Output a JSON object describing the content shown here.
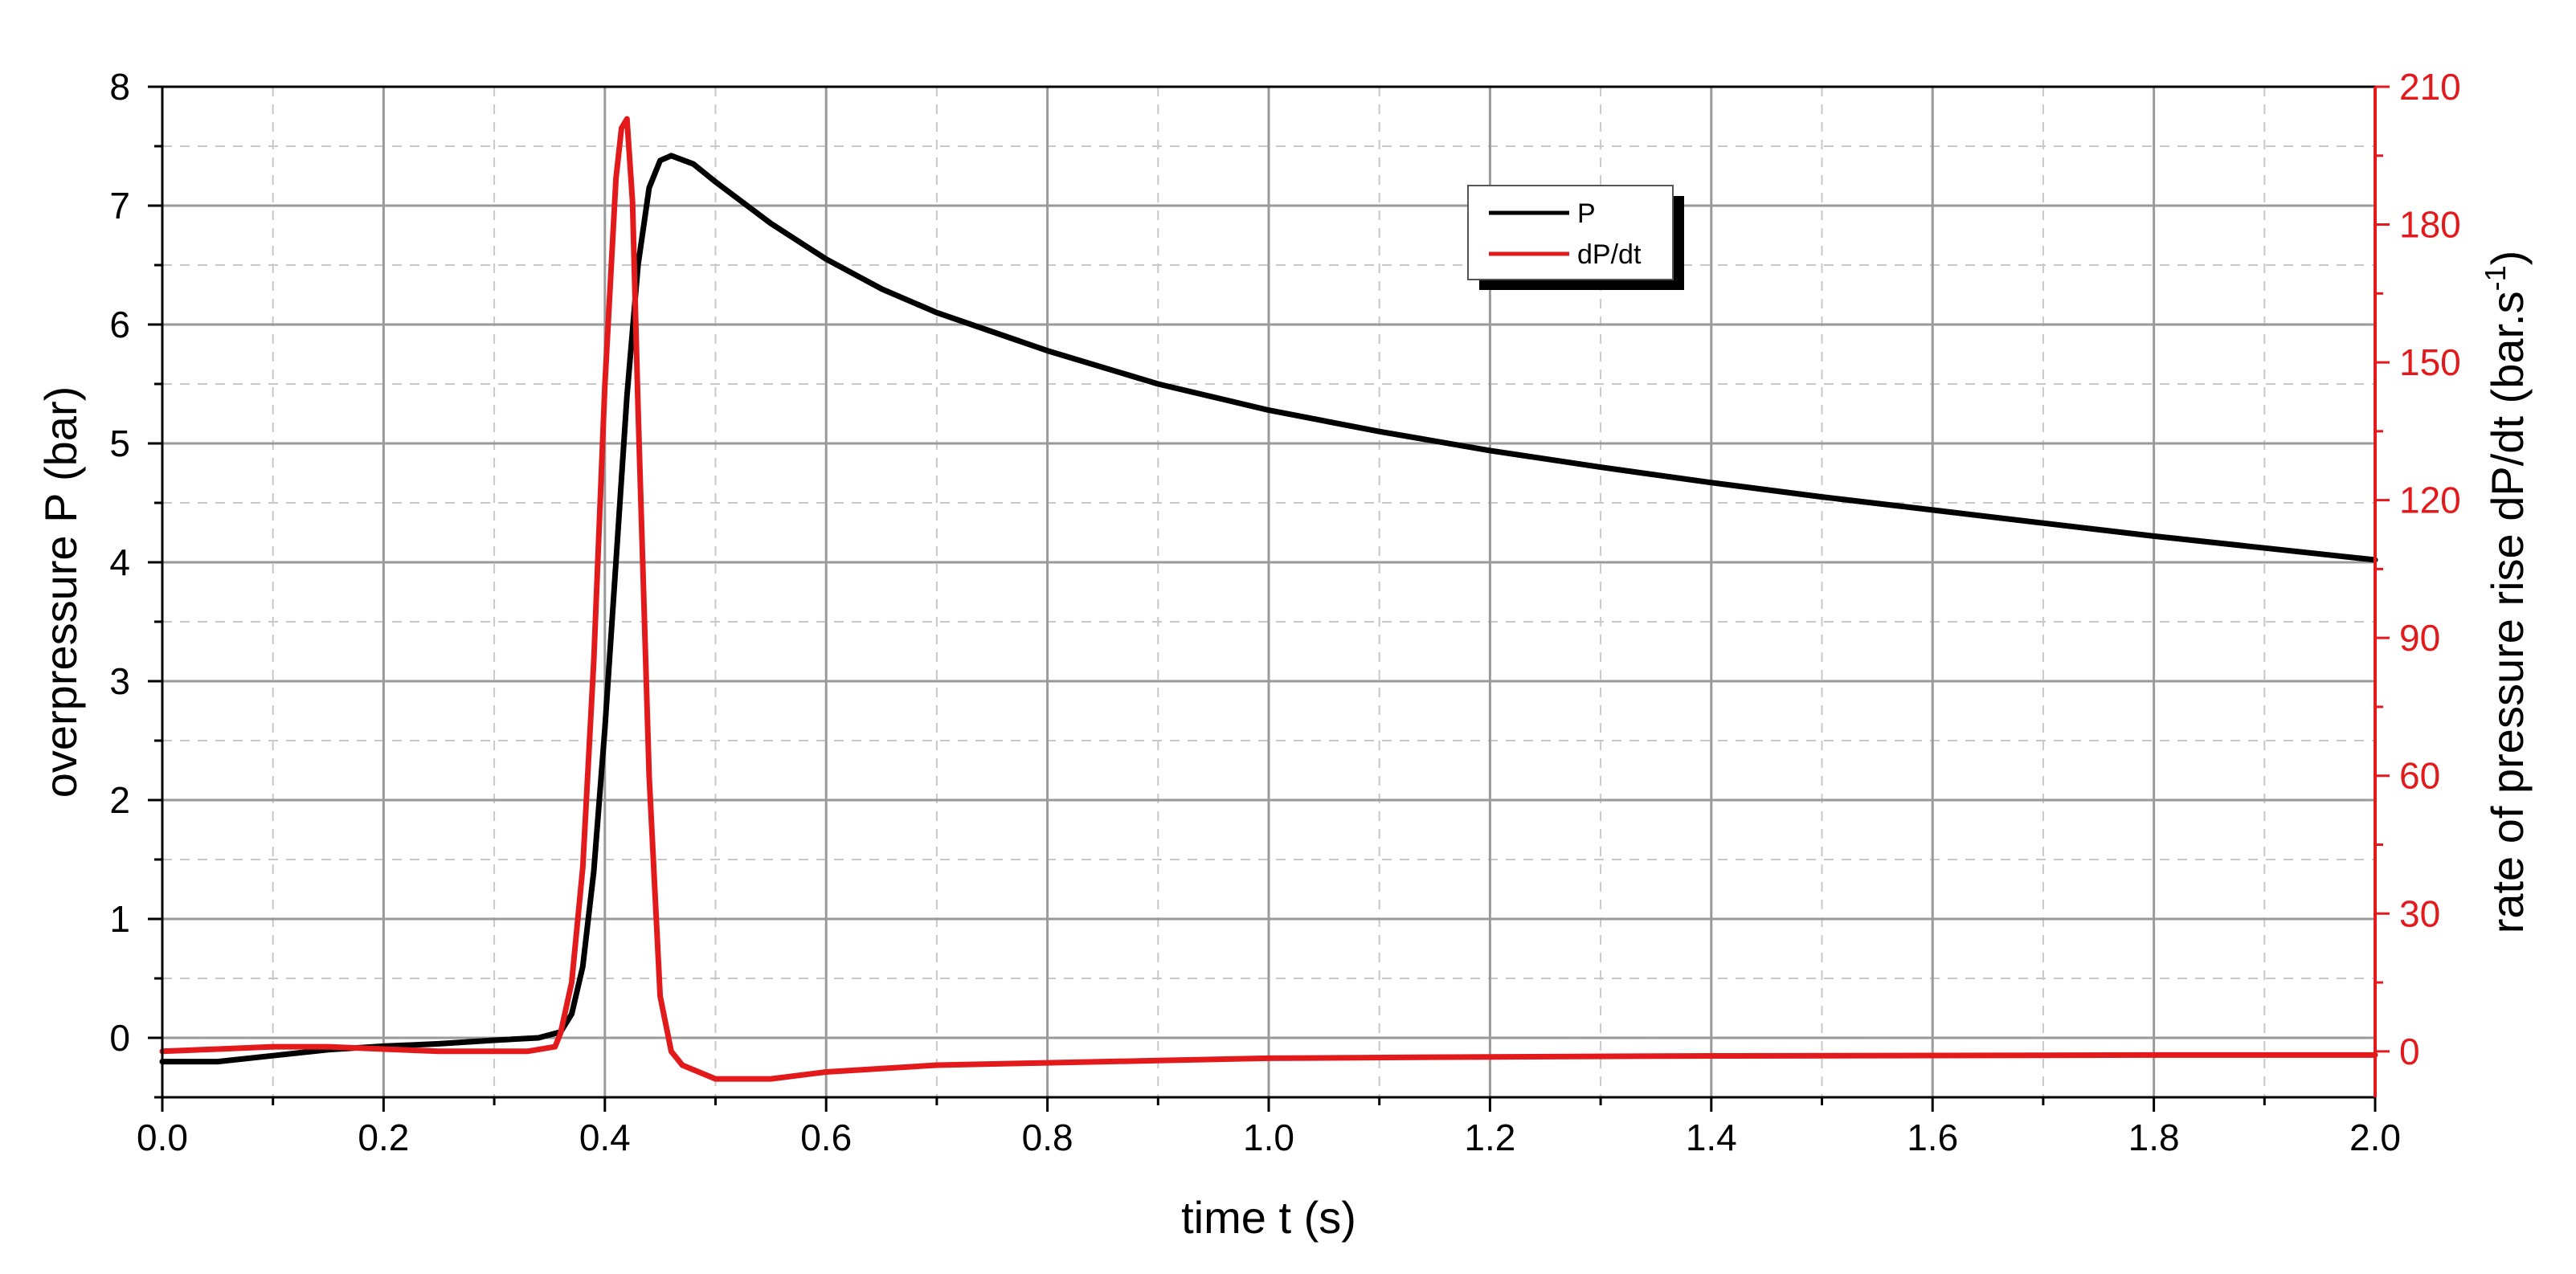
{
  "chart_data": {
    "type": "line",
    "xlabel": "time t (s)",
    "ylabel": "overpressure P (bar)",
    "ylabel_right": "rate of pressure rise dP/dt (bar.s",
    "ylabel_right_sup": "-1",
    "ylabel_right_end": ")",
    "xlim": [
      0,
      2.0
    ],
    "ylim": [
      -0.5,
      8
    ],
    "ylim_right": [
      -10,
      210
    ],
    "x_ticks": [
      "0.0",
      "0.2",
      "0.4",
      "0.6",
      "0.8",
      "1.0",
      "1.2",
      "1.4",
      "1.6",
      "1.8",
      "2.0"
    ],
    "y_ticks": [
      "0",
      "1",
      "2",
      "3",
      "4",
      "5",
      "6",
      "7",
      "8"
    ],
    "y_ticks_right": [
      "0",
      "30",
      "60",
      "90",
      "120",
      "150",
      "180",
      "210"
    ],
    "grid": true,
    "legend_position": "top-center-right",
    "series": [
      {
        "name": "P",
        "axis": "left",
        "color": "#000000",
        "x": [
          0.0,
          0.05,
          0.1,
          0.15,
          0.2,
          0.25,
          0.3,
          0.34,
          0.36,
          0.37,
          0.38,
          0.39,
          0.4,
          0.41,
          0.42,
          0.43,
          0.44,
          0.45,
          0.46,
          0.48,
          0.5,
          0.55,
          0.6,
          0.65,
          0.7,
          0.8,
          0.9,
          1.0,
          1.1,
          1.2,
          1.3,
          1.4,
          1.5,
          1.6,
          1.7,
          1.8,
          1.9,
          2.0
        ],
        "y": [
          -0.2,
          -0.2,
          -0.15,
          -0.1,
          -0.07,
          -0.05,
          -0.02,
          0.0,
          0.05,
          0.2,
          0.6,
          1.4,
          2.6,
          4.0,
          5.4,
          6.5,
          7.15,
          7.38,
          7.42,
          7.35,
          7.2,
          6.85,
          6.55,
          6.3,
          6.1,
          5.78,
          5.5,
          5.28,
          5.1,
          4.94,
          4.8,
          4.67,
          4.55,
          4.44,
          4.33,
          4.22,
          4.12,
          4.02
        ]
      },
      {
        "name": "dP/dt",
        "axis": "right",
        "color": "#e31a1c",
        "x": [
          0.0,
          0.05,
          0.1,
          0.15,
          0.2,
          0.25,
          0.3,
          0.33,
          0.355,
          0.36,
          0.37,
          0.38,
          0.39,
          0.4,
          0.41,
          0.415,
          0.42,
          0.425,
          0.43,
          0.44,
          0.45,
          0.46,
          0.47,
          0.5,
          0.55,
          0.6,
          0.7,
          0.8,
          0.9,
          1.0,
          1.2,
          1.4,
          1.6,
          1.8,
          2.0
        ],
        "y": [
          0,
          0.5,
          1,
          1,
          0.5,
          0,
          0,
          0,
          1,
          4,
          15,
          40,
          85,
          145,
          190,
          201,
          203,
          185,
          140,
          60,
          12,
          0,
          -3,
          -6,
          -6,
          -4.5,
          -3,
          -2.5,
          -2,
          -1.5,
          -1.2,
          -1,
          -0.9,
          -0.8,
          -0.8
        ]
      }
    ]
  }
}
